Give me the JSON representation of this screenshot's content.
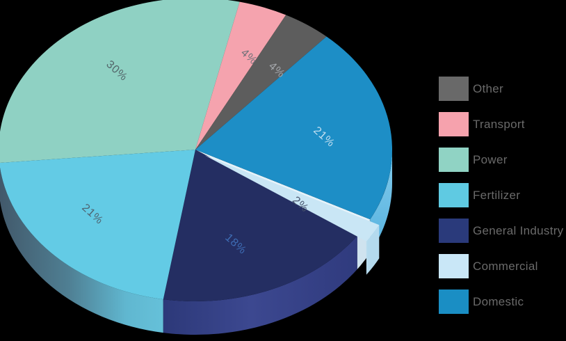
{
  "background": "#000000",
  "chart_data": {
    "type": "pie",
    "style": "3d",
    "title": "",
    "legend_position": "right",
    "start_angle_deg": 77,
    "direction": "clockwise",
    "slice_order_clockwise": [
      "Transport",
      "Other",
      "Domestic",
      "Commercial",
      "General Industry",
      "Fertilizer",
      "Power"
    ],
    "exploded_slice": "Commercial",
    "slices": [
      {
        "label": "Other",
        "value": 4,
        "value_label": "4%",
        "color": "#696969",
        "pie_color": "#5d5d5d",
        "label_color": "#a4a7ab"
      },
      {
        "label": "Transport",
        "value": 4,
        "value_label": "4%",
        "color": "#f6a2ad",
        "pie_color": "#f5a3ae",
        "label_color": "#6e7078"
      },
      {
        "label": "Power",
        "value": 30,
        "value_label": "30%",
        "color": "#90d3c4",
        "pie_color": "#8fd1c3",
        "label_color": "#53666a"
      },
      {
        "label": "Fertilizer",
        "value": 21,
        "value_label": "21%",
        "color": "#5fcae2",
        "pie_color": "#63cbe5",
        "label_color": "#4e6370"
      },
      {
        "label": "General Industry",
        "value": 18,
        "value_label": "18%",
        "color": "#2a3a7b",
        "pie_color": "#242e62",
        "label_color": "#3e6cb4"
      },
      {
        "label": "Commercial",
        "value": 2,
        "value_label": "2%",
        "color": "#c9e7f7",
        "pie_color": "#c9e6f5",
        "label_color": "#46526b"
      },
      {
        "label": "Domestic",
        "value": 21,
        "value_label": "21%",
        "color": "#1a8ec4",
        "pie_color": "#1d8ec6",
        "label_color": "#c3dff0"
      }
    ]
  }
}
